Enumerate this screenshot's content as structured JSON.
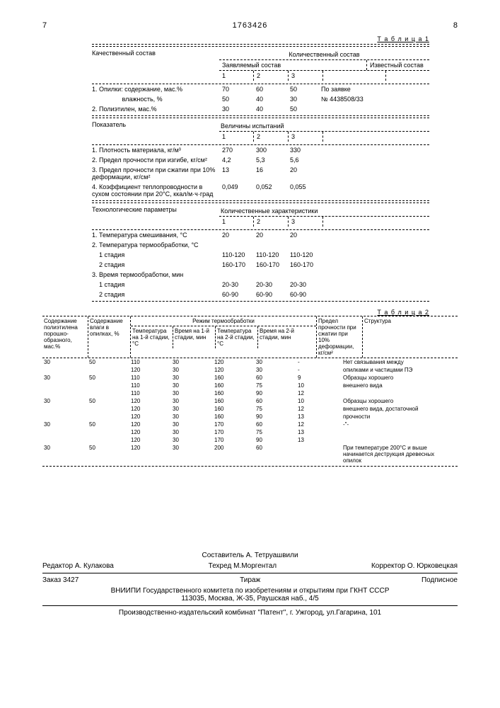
{
  "page_left": "7",
  "doc_num": "1763426",
  "page_right": "8",
  "table1_label": "Т а б л и ц а  1",
  "t1": {
    "h_qual": "Качественный состав",
    "h_quant": "Количественный состав",
    "h_claimed": "Заявляемый состав",
    "h_known": "Известный состав",
    "c1": "1",
    "c2": "2",
    "c3": "3",
    "r1_lbl": "1. Опилки: содержание, мас.%",
    "r1_v1": "70",
    "r1_v2": "60",
    "r1_v3": "50",
    "r1_note": "По заявке",
    "r1b_lbl": "                 влажность, %",
    "r1b_v1": "50",
    "r1b_v2": "40",
    "r1b_v3": "30",
    "r1b_note": "№ 4438508/33",
    "r2_lbl": "2. Полиэтилен, мас.%",
    "r2_v1": "30",
    "r2_v2": "40",
    "r2_v3": "50",
    "h_ind": "Показатель",
    "h_vals": "Величины испытаний",
    "p1_lbl": "1. Плотность материала, кг/м³",
    "p1_v1": "270",
    "p1_v2": "300",
    "p1_v3": "330",
    "p2_lbl": "2. Предел прочности при изгибе, кг/см²",
    "p2_v1": "4,2",
    "p2_v2": "5,3",
    "p2_v3": "5,6",
    "p3_lbl": "3. Предел прочности при сжатии при 10% деформации, кг/см²",
    "p3_v1": "13",
    "p3_v2": "16",
    "p3_v3": "20",
    "p4_lbl": "4. Коэффициент теплопроводности в сухом состоянии при 20°С, ккал/м·ч·град",
    "p4_v1": "0,049",
    "p4_v2": "0,052",
    "p4_v3": "0,055",
    "h_tech": "Технологические параметры",
    "h_qchar": "Количественные характеристики",
    "t1_lbl": "1. Температура смешивания, °С",
    "t1_v1": "20",
    "t1_v2": "20",
    "t1_v3": "20",
    "t2_lbl": "2. Температура термообработки, °С",
    "t2a_lbl": "    1 стадия",
    "t2a_v1": "110-120",
    "t2a_v2": "110-120",
    "t2a_v3": "110-120",
    "t2b_lbl": "    2 стадия",
    "t2b_v1": "160-170",
    "t2b_v2": "160-170",
    "t2b_v3": "160-170",
    "t3_lbl": "3. Время термообработки, мин",
    "t3a_lbl": "    1 стадия",
    "t3a_v1": "20-30",
    "t3a_v2": "20-30",
    "t3a_v3": "20-30",
    "t3b_lbl": "    2 стадия",
    "t3b_v1": "60-90",
    "t3b_v2": "60-90",
    "t3b_v3": "60-90"
  },
  "table2_label": "Т а б л и ц а  2",
  "t2head": {
    "c1": "Содержание полиэтилена порошко-образного, мас.%",
    "c2": "Содержание влаги в опилках, %",
    "c_mid": "Режим термообработки",
    "c3": "Температура на 1-й стадии, °С",
    "c4": "Время на 1-й стадии, мин",
    "c5": "Температура на 2-й стадии, °С",
    "c6": "Время на 2-й стадии, мин",
    "c7": "Предел прочности при сжатии при 10% деформации, кг/см²",
    "c8": "Структура"
  },
  "t2rows": [
    {
      "a": "30",
      "b": "50",
      "c": "110",
      "d": "30",
      "e": "120",
      "f": "30",
      "g": "-",
      "h": "Нет связывания между"
    },
    {
      "a": "",
      "b": "",
      "c": "120",
      "d": "30",
      "e": "120",
      "f": "30",
      "g": "-",
      "h": "опилками и частицами ПЭ"
    },
    {
      "a": "30",
      "b": "50",
      "c": "110",
      "d": "30",
      "e": "160",
      "f": "60",
      "g": "9",
      "h": "Образцы хорошего"
    },
    {
      "a": "",
      "b": "",
      "c": "110",
      "d": "30",
      "e": "160",
      "f": "75",
      "g": "10",
      "h": "внешнего вида"
    },
    {
      "a": "",
      "b": "",
      "c": "110",
      "d": "30",
      "e": "160",
      "f": "90",
      "g": "12",
      "h": ""
    },
    {
      "a": "30",
      "b": "50",
      "c": "120",
      "d": "30",
      "e": "160",
      "f": "60",
      "g": "10",
      "h": "Образцы хорошего"
    },
    {
      "a": "",
      "b": "",
      "c": "120",
      "d": "30",
      "e": "160",
      "f": "75",
      "g": "12",
      "h": "внешнего вида, достаточной"
    },
    {
      "a": "",
      "b": "",
      "c": "120",
      "d": "30",
      "e": "160",
      "f": "90",
      "g": "13",
      "h": "прочности"
    },
    {
      "a": "30",
      "b": "50",
      "c": "120",
      "d": "30",
      "e": "170",
      "f": "60",
      "g": "12",
      "h": "-\"-"
    },
    {
      "a": "",
      "b": "",
      "c": "120",
      "d": "30",
      "e": "170",
      "f": "75",
      "g": "13",
      "h": ""
    },
    {
      "a": "",
      "b": "",
      "c": "120",
      "d": "30",
      "e": "170",
      "f": "90",
      "g": "13",
      "h": ""
    },
    {
      "a": "30",
      "b": "50",
      "c": "120",
      "d": "30",
      "e": "200",
      "f": "60",
      "g": "",
      "h": "При температуре 200°С и выше начинается деструкция древесных опилок"
    }
  ],
  "footer": {
    "comp": "Составитель А. Тетруашвили",
    "editor_lbl": "Редактор",
    "editor": "А. Кулакова",
    "techred_lbl": "Техред",
    "techred": "М.Моргентал",
    "corr_lbl": "Корректор",
    "corr": "О. Юрковецкая",
    "order": "Заказ 3427",
    "tiraj": "Тираж",
    "sub": "Подписное",
    "org": "ВНИИПИ Государственного комитета по изобретениям и открытиям при ГКНТ СССР",
    "addr": "113035, Москва, Ж-35, Раушская наб., 4/5",
    "print": "Производственно-издательский комбинат \"Патент\", г. Ужгород, ул.Гагарина, 101"
  }
}
